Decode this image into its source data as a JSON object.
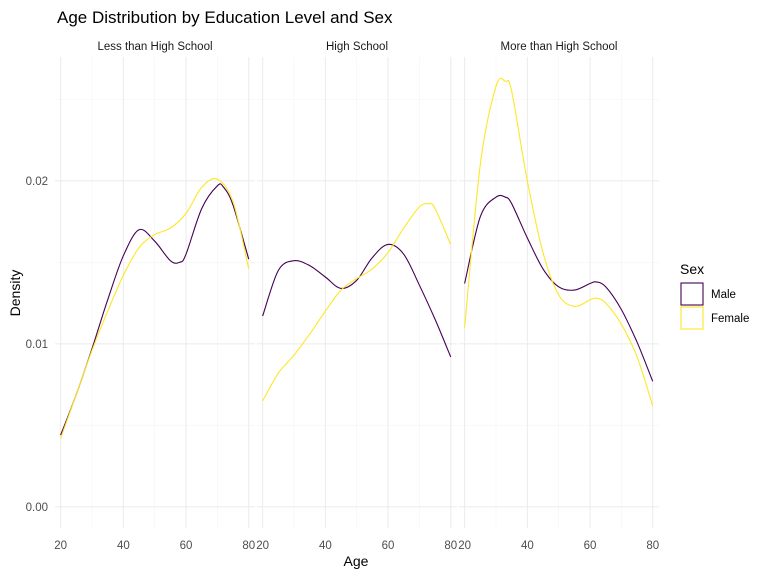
{
  "chart_data": {
    "type": "line",
    "title": "Age Distribution by Education Level and Sex",
    "xlabel": "Age",
    "ylabel": "Density",
    "xlim": [
      18.2,
      82
    ],
    "ylim": [
      -0.0013,
      0.0276
    ],
    "x_ticks": [
      20,
      40,
      60,
      80
    ],
    "y_ticks": [
      0.0,
      0.01,
      0.02
    ],
    "y_tick_labels": [
      "0.00",
      "0.01",
      "0.02"
    ],
    "grid": true,
    "legend": {
      "title": "Sex",
      "position": "right",
      "entries": [
        {
          "label": "Male",
          "color": "#440154"
        },
        {
          "label": "Female",
          "color": "#FDE725"
        }
      ]
    },
    "panels": [
      {
        "title": "Less than High School",
        "series": [
          {
            "name": "Male",
            "color": "#440154",
            "x": [
              20,
              25,
              30,
              35,
              40,
              45,
              50,
              55,
              58,
              60,
              65,
              70,
              72,
              75,
              80
            ],
            "y": [
              0.0044,
              0.0069,
              0.0097,
              0.0127,
              0.0154,
              0.017,
              0.0163,
              0.0151,
              0.015,
              0.0155,
              0.0183,
              0.0197,
              0.0196,
              0.0185,
              0.0152
            ]
          },
          {
            "name": "Female",
            "color": "#FDE725",
            "x": [
              20,
              25,
              30,
              35,
              40,
              45,
              50,
              55,
              60,
              65,
              70,
              75,
              80
            ],
            "y": [
              0.0042,
              0.0069,
              0.0096,
              0.012,
              0.0142,
              0.0159,
              0.0167,
              0.0171,
              0.018,
              0.0196,
              0.0201,
              0.0187,
              0.0146
            ]
          }
        ]
      },
      {
        "title": "High School",
        "series": [
          {
            "name": "Male",
            "color": "#440154",
            "x": [
              20,
              25,
              30,
              35,
              40,
              45,
              50,
              55,
              60,
              65,
              70,
              75,
              80
            ],
            "y": [
              0.0117,
              0.0145,
              0.0151,
              0.0148,
              0.0141,
              0.0134,
              0.0139,
              0.0153,
              0.0161,
              0.0155,
              0.0136,
              0.0115,
              0.0092
            ]
          },
          {
            "name": "Female",
            "color": "#FDE725",
            "x": [
              20,
              25,
              30,
              35,
              40,
              45,
              50,
              55,
              60,
              65,
              70,
              73,
              75,
              80
            ],
            "y": [
              0.0065,
              0.0082,
              0.0093,
              0.0106,
              0.012,
              0.0133,
              0.014,
              0.0146,
              0.0156,
              0.0171,
              0.0184,
              0.0186,
              0.0183,
              0.0161
            ]
          }
        ]
      },
      {
        "title": "More than High School",
        "series": [
          {
            "name": "Male",
            "color": "#440154",
            "x": [
              20,
              25,
              30,
              33,
              35,
              40,
              45,
              50,
              55,
              60,
              62,
              65,
              70,
              75,
              80
            ],
            "y": [
              0.0137,
              0.0178,
              0.019,
              0.019,
              0.0186,
              0.0165,
              0.0146,
              0.0135,
              0.0133,
              0.0137,
              0.0138,
              0.0135,
              0.0121,
              0.0101,
              0.0077
            ]
          },
          {
            "name": "Female",
            "color": "#FDE725",
            "x": [
              20,
              25,
              30,
              33,
              35,
              40,
              45,
              50,
              55,
              60,
              62,
              65,
              70,
              75,
              80
            ],
            "y": [
              0.011,
              0.021,
              0.0258,
              0.0261,
              0.0255,
              0.02,
              0.0156,
              0.013,
              0.0123,
              0.0127,
              0.0128,
              0.0125,
              0.0112,
              0.0092,
              0.0062
            ]
          }
        ]
      }
    ]
  }
}
